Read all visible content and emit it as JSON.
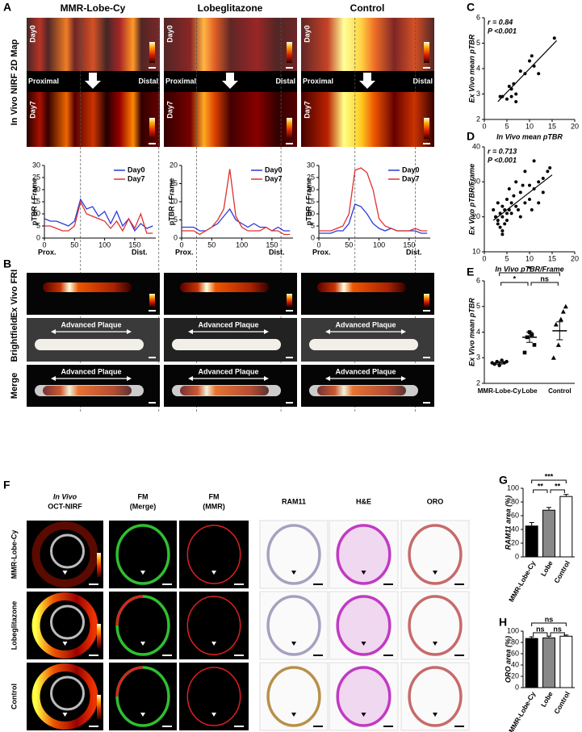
{
  "panel_labels": [
    "A",
    "B",
    "C",
    "D",
    "E",
    "F",
    "G",
    "H"
  ],
  "panel_a": {
    "side_label": "In Vivo NIRF 2D Map",
    "columns": [
      "MMR-Lobe-Cy",
      "Lobeglitazone",
      "Control"
    ],
    "day_labels": [
      "Day0",
      "Day7"
    ],
    "proximal": "Proximal",
    "distal": "Distal"
  },
  "panel_b": {
    "row_labels": [
      "Ex Vivo FRI",
      "Brightfield",
      "Merge"
    ],
    "plaque_label": "Advanced Plaque"
  },
  "panel_f": {
    "columns": [
      [
        "In Vivo",
        "OCT-NIRF"
      ],
      [
        "FM",
        "(Merge)"
      ],
      [
        "FM",
        "(MMR)"
      ],
      [
        "RAM11"
      ],
      [
        "H&E"
      ],
      [
        "ORO"
      ]
    ],
    "rows": [
      "MMR-Lobe-Cy",
      "Lobeglitazone",
      "Control"
    ]
  },
  "chart_data": [
    {
      "type": "line",
      "ylabel": "pTBR / Frame",
      "x": [
        0,
        10,
        20,
        30,
        40,
        50,
        60,
        70,
        80,
        90,
        100,
        110,
        120,
        130,
        140,
        150,
        160,
        170,
        180
      ],
      "series": [
        {
          "name": "Day0",
          "color": "#2b3bd8",
          "values": [
            8,
            7,
            7,
            6,
            5,
            7,
            16,
            12,
            13,
            9,
            11,
            6,
            11,
            5,
            8,
            3,
            6,
            4,
            5
          ]
        },
        {
          "name": "Day7",
          "color": "#e03030",
          "values": [
            5,
            5,
            4,
            3,
            3,
            5,
            15,
            10,
            9,
            8,
            7,
            4,
            7,
            3,
            8,
            4,
            10,
            2,
            2
          ]
        }
      ],
      "xlim": [
        0,
        185
      ],
      "xticks": [
        0,
        50,
        100,
        150
      ],
      "ylim": [
        0,
        30
      ],
      "yticks": [
        0,
        5,
        10,
        15,
        20,
        25,
        30
      ],
      "axis_notes": [
        "Prox.",
        "Dist."
      ]
    },
    {
      "type": "line",
      "ylabel": "pTBR / Frame",
      "x": [
        0,
        10,
        20,
        30,
        40,
        50,
        60,
        70,
        80,
        90,
        100,
        110,
        120,
        130,
        140,
        150,
        160,
        170,
        180
      ],
      "series": [
        {
          "name": "Day0",
          "color": "#2b3bd8",
          "values": [
            3,
            3,
            3,
            2,
            2,
            3,
            4,
            6,
            8,
            5,
            4,
            3,
            4,
            3,
            3,
            2,
            3,
            2,
            2
          ]
        },
        {
          "name": "Day7",
          "color": "#e03030",
          "values": [
            2,
            2,
            2,
            1,
            2,
            3,
            5,
            8,
            19,
            6,
            3,
            2,
            2,
            2,
            3,
            2,
            2,
            1,
            1
          ]
        }
      ],
      "xlim": [
        0,
        185
      ],
      "xticks": [
        0,
        50,
        100,
        150
      ],
      "ylim": [
        0,
        20
      ],
      "yticks": [
        0,
        5,
        10,
        15,
        20
      ],
      "axis_notes": [
        "Prox.",
        "Dist."
      ]
    },
    {
      "type": "line",
      "ylabel": "pTBR / Frame",
      "x": [
        0,
        10,
        20,
        30,
        40,
        50,
        60,
        70,
        80,
        90,
        100,
        110,
        120,
        130,
        140,
        150,
        160,
        170,
        180
      ],
      "series": [
        {
          "name": "Day0",
          "color": "#2b3bd8",
          "values": [
            2,
            2,
            2,
            3,
            3,
            6,
            14,
            13,
            10,
            6,
            4,
            3,
            4,
            3,
            3,
            3,
            3,
            2,
            2
          ]
        },
        {
          "name": "Day7",
          "color": "#e03030",
          "values": [
            3,
            3,
            3,
            4,
            5,
            10,
            28,
            29,
            27,
            20,
            8,
            5,
            4,
            3,
            3,
            3,
            4,
            3,
            3
          ]
        }
      ],
      "xlim": [
        0,
        185
      ],
      "xticks": [
        0,
        50,
        100,
        150
      ],
      "ylim": [
        0,
        30
      ],
      "yticks": [
        0,
        5,
        10,
        15,
        20,
        25,
        30
      ],
      "axis_notes": [
        "Prox.",
        "Dist."
      ]
    },
    {
      "type": "scatter",
      "xlabel": "In Vivo mean pTBR",
      "ylabel": "Ex Vivo mean pTBR",
      "annotations": [
        "r = 0.84",
        "P <0.001"
      ],
      "x": [
        3.5,
        4,
        5,
        5.5,
        6,
        6,
        6.5,
        7,
        7,
        8,
        9,
        10,
        10.5,
        11,
        12,
        15.5
      ],
      "y": [
        2.9,
        2.9,
        2.8,
        3.3,
        3.2,
        2.9,
        3.4,
        2.7,
        3.0,
        3.9,
        3.8,
        4.3,
        4.5,
        4.1,
        3.8,
        5.2
      ],
      "fit": {
        "x": [
          3,
          16
        ],
        "y": [
          2.7,
          5.1
        ]
      },
      "color": "#000",
      "xlim": [
        0,
        20
      ],
      "xticks": [
        0,
        5,
        10,
        15,
        20
      ],
      "ylim": [
        2,
        6
      ],
      "yticks": [
        2,
        3,
        4,
        5,
        6
      ]
    },
    {
      "type": "scatter",
      "xlabel": "In Vivo pTBR/Frame",
      "ylabel": "Ex Vivo pTBR/Frame",
      "annotations": [
        "r = 0.713",
        "P <0.001"
      ],
      "x": [
        2,
        2.5,
        3,
        3,
        3.5,
        3.5,
        4,
        4,
        4,
        4.5,
        4.5,
        5,
        5,
        5,
        5.5,
        5.5,
        6,
        6,
        6.5,
        7,
        7,
        7.5,
        8,
        8,
        8.5,
        9,
        9,
        10,
        10,
        10.5,
        11,
        11,
        12,
        12,
        13,
        13,
        14,
        14.5,
        3,
        4
      ],
      "y": [
        22,
        20,
        19,
        24,
        21,
        17,
        20,
        23,
        16,
        22,
        18,
        21,
        25,
        19,
        22,
        28,
        21,
        24,
        26,
        23,
        30,
        22,
        27,
        20,
        29,
        24,
        33,
        25,
        29,
        22,
        36,
        28,
        30,
        24,
        31,
        27,
        33,
        34,
        18,
        15
      ],
      "fit": {
        "x": [
          2,
          15
        ],
        "y": [
          19,
          32
        ]
      },
      "color": "#000",
      "xlim": [
        0,
        20
      ],
      "xticks": [
        0,
        5,
        10,
        15,
        20
      ],
      "ylim": [
        10,
        40
      ],
      "yticks": [
        10,
        20,
        30,
        40
      ]
    },
    {
      "type": "strip",
      "ylabel": "Ex Vivo mean pTBR",
      "categories": [
        "MMR-Lobe-Cy",
        "Lobe",
        "Control"
      ],
      "points": [
        [
          2.8,
          2.75,
          2.85,
          2.7,
          2.9,
          2.8,
          2.85
        ],
        [
          3.2,
          3.8,
          4.0,
          3.9,
          3.5
        ],
        [
          3.0,
          4.3,
          3.5,
          4.5,
          4.8,
          5.0
        ]
      ],
      "markers": [
        "circle",
        "square",
        "triangle"
      ],
      "means": [
        2.8,
        3.8,
        4.05
      ],
      "errors": [
        0.05,
        0.2,
        0.35
      ],
      "significance": [
        "*",
        "*",
        "ns"
      ],
      "ylim": [
        2,
        6
      ],
      "yticks": [
        2,
        3,
        4,
        5,
        6
      ]
    },
    {
      "type": "bar",
      "ylabel": "RAM11 area (%)",
      "categories": [
        "MMR-Lobe-Cy",
        "Lobe",
        "Control"
      ],
      "values": [
        45,
        68,
        88
      ],
      "errors": [
        5,
        4,
        3
      ],
      "colors": [
        "#000000",
        "#888888",
        "#ffffff"
      ],
      "significance": [
        "***",
        "**",
        "**"
      ],
      "ylim": [
        0,
        100
      ],
      "yticks": [
        0,
        20,
        40,
        60,
        80,
        100
      ]
    },
    {
      "type": "bar",
      "ylabel": "ORO area (%)",
      "categories": [
        "MMR-Lobe-Cy",
        "Lobe",
        "Control"
      ],
      "values": [
        87,
        88,
        91
      ],
      "errors": [
        3,
        3,
        2
      ],
      "colors": [
        "#000000",
        "#888888",
        "#ffffff"
      ],
      "significance": [
        "ns",
        "ns",
        "ns"
      ],
      "ylim": [
        0,
        100
      ],
      "yticks": [
        0,
        20,
        40,
        60,
        80,
        100
      ]
    }
  ]
}
